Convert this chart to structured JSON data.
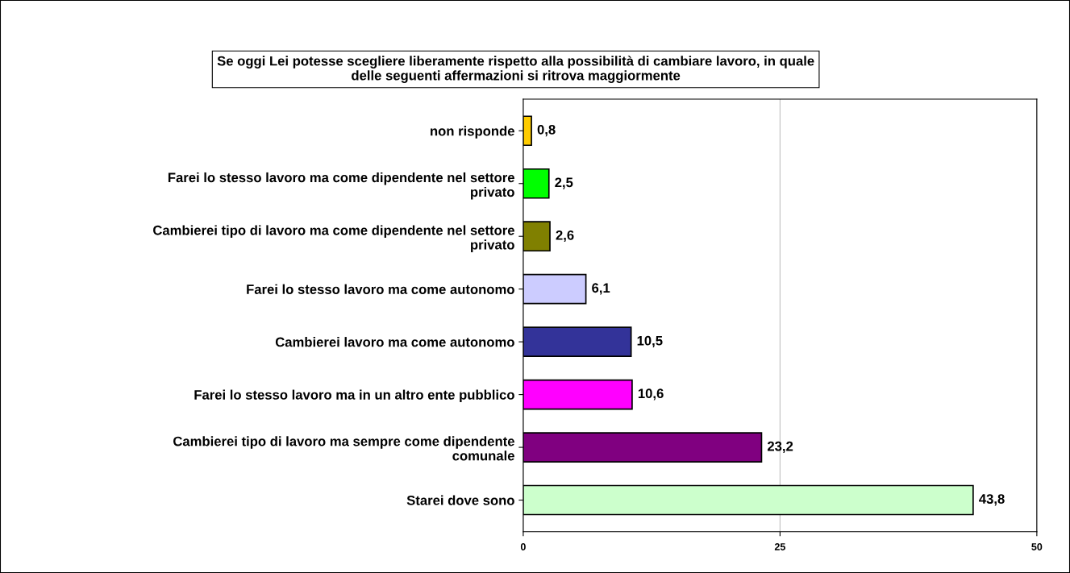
{
  "chart_data": {
    "type": "bar",
    "orientation": "horizontal",
    "title": "Se oggi Lei potesse scegliere liberamente rispetto alla possibilità di cambiare lavoro, in quale\ndelle seguenti affermazioni si ritrova maggiormente",
    "categories": [
      "non risponde",
      "Farei lo stesso lavoro ma come dipendente nel settore\nprivato",
      "Cambierei tipo di lavoro ma come dipendente nel settore\nprivato",
      "Farei lo stesso lavoro ma come autonomo",
      "Cambierei lavoro ma come autonomo",
      "Farei lo stesso lavoro ma in un altro ente pubblico",
      "Cambierei tipo di lavoro ma sempre come dipendente\ncomunale",
      "Starei dove sono"
    ],
    "values": [
      0.8,
      2.5,
      2.6,
      6.1,
      10.5,
      10.6,
      23.2,
      43.8
    ],
    "value_labels": [
      "0,8",
      "2,5",
      "2,6",
      "6,1",
      "10,5",
      "10,6",
      "23,2",
      "43,8"
    ],
    "colors": [
      "#ffcc00",
      "#00ff00",
      "#808000",
      "#ccccff",
      "#333399",
      "#ff00ff",
      "#800080",
      "#ccffcc"
    ],
    "xlim": [
      0,
      50
    ],
    "xticks": [
      0,
      25,
      50
    ],
    "grid": "x",
    "legend": false
  }
}
